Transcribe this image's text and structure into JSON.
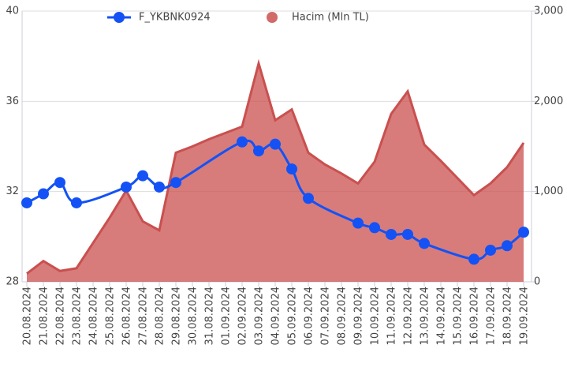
{
  "chart_data": {
    "type": "line_area",
    "categories": [
      "20.08.2024",
      "21.08.2024",
      "22.08.2024",
      "23.08.2024",
      "24.08.2024",
      "25.08.2024",
      "26.08.2024",
      "27.08.2024",
      "28.08.2024",
      "29.08.2024",
      "30.08.2024",
      "31.08.2024",
      "01.09.2024",
      "02.09.2024",
      "03.09.2024",
      "04.09.2024",
      "05.09.2024",
      "06.09.2024",
      "07.09.2024",
      "08.09.2024",
      "09.09.2024",
      "10.09.2024",
      "11.09.2024",
      "12.09.2024",
      "13.09.2024",
      "14.09.2024",
      "15.09.2024",
      "16.09.2024",
      "17.09.2024",
      "18.09.2024",
      "19.09.2024"
    ],
    "series": [
      {
        "name": "F_YKBNK0924",
        "color": "#1452f5",
        "type": "line",
        "values": [
          31.5,
          31.9,
          32.4,
          31.5,
          null,
          null,
          32.2,
          32.7,
          32.2,
          32.4,
          null,
          null,
          null,
          34.2,
          33.8,
          34.1,
          33.0,
          31.7,
          null,
          null,
          30.6,
          30.4,
          30.1,
          30.1,
          29.7,
          null,
          null,
          29.0,
          29.4,
          29.6,
          30.2
        ]
      },
      {
        "name": "Hacim (Mln TL)",
        "color": "#c9504f",
        "type": "area",
        "axis": "y2",
        "values": [
          90,
          230,
          120,
          150,
          430,
          710,
          1010,
          670,
          570,
          1430,
          1500,
          1580,
          1650,
          1720,
          2420,
          1790,
          1910,
          1430,
          1300,
          1200,
          1090,
          1330,
          1860,
          2110,
          1520,
          1340,
          1150,
          960,
          1090,
          1270,
          1540
        ]
      }
    ],
    "span_gaps": true,
    "ylim": [
      28,
      40
    ],
    "yticks": [
      28,
      32,
      36,
      40
    ],
    "y2lim": [
      0,
      3000
    ],
    "y2ticks": [
      0,
      {
        "value": 1000,
        "label": "1,000"
      },
      {
        "value": 2000,
        "label": "2,000"
      },
      {
        "value": 3000,
        "label": "3,000"
      }
    ],
    "grid": true
  }
}
